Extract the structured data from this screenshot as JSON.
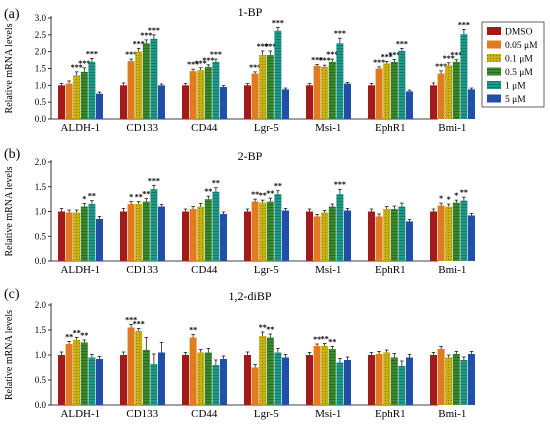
{
  "legend": {
    "placement": "right",
    "entries": [
      {
        "label": "DMSO",
        "color": "#a31a1a"
      },
      {
        "label": "0.05 μM",
        "color": "#e07b20"
      },
      {
        "label": "0.1 μM",
        "color": "#c8b010"
      },
      {
        "label": "0.5 μM",
        "color": "#3a8a2e"
      },
      {
        "label": "1 μM",
        "color": "#1f9a8a"
      },
      {
        "label": "5 μM",
        "color": "#1f4fa8"
      }
    ]
  },
  "chart_data": [
    {
      "type": "bar",
      "panel_label": "(a)",
      "title": "1-BP",
      "ylabel": "Relative mRNA levels",
      "ylim": [
        0,
        3.0
      ],
      "yticks": [
        "0.0",
        "0.5",
        "1.0",
        "1.5",
        "2.0",
        "2.5",
        "3.0"
      ],
      "categories": [
        "ALDH-1",
        "CD133",
        "CD44",
        "Lgr-5",
        "Msi-1",
        "EphR1",
        "Bmi-1"
      ],
      "series": [
        {
          "name": "DMSO",
          "values": [
            1.0,
            1.0,
            1.0,
            1.0,
            1.0,
            1.0,
            1.0
          ]
        },
        {
          "name": "0.05 μM",
          "values": [
            1.05,
            1.72,
            1.42,
            1.35,
            1.58,
            1.5,
            1.35
          ]
        },
        {
          "name": "0.1 μM",
          "values": [
            1.3,
            2.0,
            1.45,
            1.9,
            1.55,
            1.65,
            1.6
          ]
        },
        {
          "name": "0.5 μM",
          "values": [
            1.4,
            2.25,
            1.55,
            1.9,
            1.7,
            1.7,
            1.7
          ]
        },
        {
          "name": "1 μM",
          "values": [
            1.7,
            2.38,
            1.7,
            2.62,
            2.25,
            2.02,
            2.52
          ]
        },
        {
          "name": "5 μM",
          "values": [
            0.75,
            1.0,
            0.95,
            0.88,
            1.05,
            0.82,
            0.88
          ]
        }
      ],
      "errors": [
        [
          0.06,
          0.07,
          0.05,
          0.05,
          0.05,
          0.06,
          0.07
        ],
        [
          0.08,
          0.06,
          0.06,
          0.05,
          0.04,
          0.05,
          0.08
        ],
        [
          0.1,
          0.1,
          0.07,
          0.12,
          0.05,
          0.06,
          0.07
        ],
        [
          0.12,
          0.1,
          0.06,
          0.12,
          0.08,
          0.07,
          0.06
        ],
        [
          0.1,
          0.12,
          0.08,
          0.1,
          0.15,
          0.08,
          0.14
        ],
        [
          0.05,
          0.04,
          0.04,
          0.04,
          0.04,
          0.04,
          0.04
        ]
      ],
      "significance": [
        [
          "",
          "",
          "",
          "",
          "",
          "",
          ""
        ],
        [
          "",
          "***",
          "***",
          "***",
          "***",
          "***",
          "***"
        ],
        [
          "***",
          "***",
          "***",
          "***",
          "***",
          "***",
          "***"
        ],
        [
          "***",
          "***",
          "***",
          "***",
          "***",
          "***",
          "***"
        ],
        [
          "***",
          "***",
          "***",
          "***",
          "***",
          "***",
          "***"
        ],
        [
          "",
          "",
          "",
          "",
          "",
          "",
          ""
        ]
      ]
    },
    {
      "type": "bar",
      "panel_label": "(b)",
      "title": "2-BP",
      "ylabel": "Relative mRNA levels",
      "ylim": [
        0,
        2.0
      ],
      "yticks": [
        "0.0",
        "0.5",
        "1.0",
        "1.5",
        "2.0"
      ],
      "categories": [
        "ALDH-1",
        "CD133",
        "CD44",
        "Lgr-5",
        "Msi-1",
        "EphR1",
        "Bmi-1"
      ],
      "series": [
        {
          "name": "DMSO",
          "values": [
            1.0,
            1.0,
            1.0,
            1.0,
            1.0,
            1.0,
            1.0
          ]
        },
        {
          "name": "0.05 μM",
          "values": [
            0.98,
            1.15,
            1.05,
            1.2,
            0.9,
            0.9,
            1.12
          ]
        },
        {
          "name": "0.1 μM",
          "values": [
            0.98,
            1.15,
            1.1,
            1.18,
            0.98,
            1.05,
            1.1
          ]
        },
        {
          "name": "0.5 μM",
          "values": [
            1.1,
            1.2,
            1.25,
            1.2,
            1.1,
            1.05,
            1.18
          ]
        },
        {
          "name": "1 μM",
          "values": [
            1.15,
            1.45,
            1.4,
            1.35,
            1.35,
            1.1,
            1.22
          ]
        },
        {
          "name": "5 μM",
          "values": [
            0.85,
            1.1,
            0.95,
            1.02,
            1.02,
            0.8,
            0.92
          ]
        }
      ],
      "errors": [
        [
          0.06,
          0.06,
          0.05,
          0.05,
          0.05,
          0.05,
          0.05
        ],
        [
          0.05,
          0.05,
          0.05,
          0.05,
          0.04,
          0.05,
          0.05
        ],
        [
          0.05,
          0.05,
          0.06,
          0.05,
          0.04,
          0.05,
          0.05
        ],
        [
          0.06,
          0.06,
          0.06,
          0.07,
          0.05,
          0.06,
          0.05
        ],
        [
          0.07,
          0.08,
          0.08,
          0.07,
          0.1,
          0.07,
          0.07
        ],
        [
          0.05,
          0.04,
          0.04,
          0.04,
          0.04,
          0.04,
          0.04
        ]
      ],
      "significance": [
        [
          "",
          "",
          "",
          "",
          "",
          "",
          ""
        ],
        [
          "",
          "*",
          "",
          "**",
          "",
          "",
          "*"
        ],
        [
          "",
          "**",
          "",
          "**",
          "",
          "",
          "*"
        ],
        [
          "*",
          "**",
          "**",
          "**",
          "",
          "",
          "*"
        ],
        [
          "**",
          "***",
          "**",
          "**",
          "***",
          "",
          "**"
        ],
        [
          "",
          "",
          "",
          "",
          "",
          "",
          ""
        ]
      ]
    },
    {
      "type": "bar",
      "panel_label": "(c)",
      "title": "1,2-diBP",
      "ylabel": "Relative mRNA levels",
      "ylim": [
        0,
        2.0
      ],
      "yticks": [
        "0.0",
        "0.5",
        "1.0",
        "1.5",
        "2.0"
      ],
      "categories": [
        "ALDH-1",
        "CD133",
        "CD44",
        "Lgr-5",
        "Msi-1",
        "EphR1",
        "Bmi-1"
      ],
      "series": [
        {
          "name": "DMSO",
          "values": [
            1.0,
            1.0,
            1.0,
            1.0,
            1.0,
            1.0,
            1.0
          ]
        },
        {
          "name": "0.05 μM",
          "values": [
            1.22,
            1.55,
            1.35,
            0.75,
            1.18,
            1.02,
            1.12
          ]
        },
        {
          "name": "0.1 μM",
          "values": [
            1.3,
            1.48,
            1.05,
            1.38,
            1.18,
            1.05,
            0.95
          ]
        },
        {
          "name": "0.5 μM",
          "values": [
            1.25,
            1.1,
            1.05,
            1.35,
            1.12,
            0.95,
            1.02
          ]
        },
        {
          "name": "1 μM",
          "values": [
            0.95,
            0.82,
            0.8,
            1.05,
            0.85,
            0.78,
            0.9
          ]
        },
        {
          "name": "5 μM",
          "values": [
            0.92,
            1.05,
            0.92,
            0.95,
            0.9,
            0.95,
            1.02
          ]
        }
      ],
      "errors": [
        [
          0.06,
          0.06,
          0.05,
          0.06,
          0.05,
          0.05,
          0.05
        ],
        [
          0.05,
          0.06,
          0.06,
          0.06,
          0.04,
          0.05,
          0.05
        ],
        [
          0.05,
          0.05,
          0.06,
          0.08,
          0.05,
          0.05,
          0.05
        ],
        [
          0.05,
          0.25,
          0.08,
          0.07,
          0.05,
          0.08,
          0.05
        ],
        [
          0.06,
          0.2,
          0.1,
          0.08,
          0.08,
          0.1,
          0.06
        ],
        [
          0.05,
          0.2,
          0.06,
          0.06,
          0.06,
          0.06,
          0.05
        ]
      ],
      "significance": [
        [
          "",
          "",
          "",
          "",
          "",
          "",
          ""
        ],
        [
          "**",
          "***",
          "**",
          "",
          "**",
          "",
          ""
        ],
        [
          "**",
          "***",
          "",
          "**",
          "**",
          "",
          ""
        ],
        [
          "**",
          "",
          "",
          "**",
          "**",
          "",
          ""
        ],
        [
          "",
          "",
          "",
          "",
          "",
          "",
          ""
        ],
        [
          "",
          "",
          "",
          "",
          "",
          "",
          ""
        ]
      ]
    }
  ]
}
